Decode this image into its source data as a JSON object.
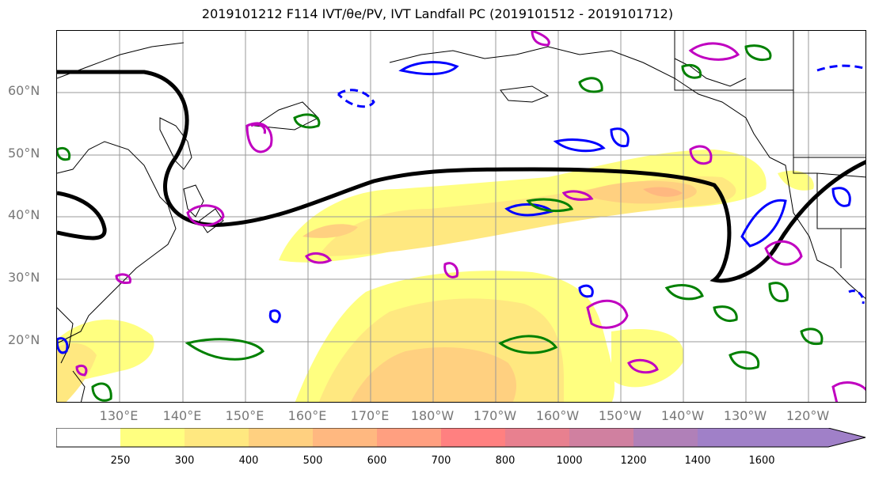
{
  "title": "2019101212 F114 IVT/θe/PV, IVT Landfall PC (2019101512 - 2019101712)",
  "map": {
    "lat_labels": [
      "60°N",
      "50°N",
      "40°N",
      "30°N",
      "20°N"
    ],
    "lon_labels": [
      "130°E",
      "140°E",
      "150°E",
      "160°E",
      "170°E",
      "180°W",
      "170°W",
      "160°W",
      "150°W",
      "140°W",
      "130°W",
      "120°W"
    ],
    "colors": {
      "ivt_fill": [
        "#ffff80",
        "#ffe880",
        "#ffd080",
        "#ffb880",
        "#ff9f80",
        "#ff8080",
        "#e8808f",
        "#d080a0",
        "#b080b8",
        "#a080c8"
      ],
      "pc_line": "#000000",
      "theta_e_positive": "#0000ff",
      "pv_positive": "#c000c0",
      "pv_negative": "#008000"
    }
  },
  "colorbar": {
    "ticks": [
      "250",
      "300",
      "400",
      "500",
      "600",
      "700",
      "800",
      "1000",
      "1200",
      "1400",
      "1600"
    ]
  }
}
